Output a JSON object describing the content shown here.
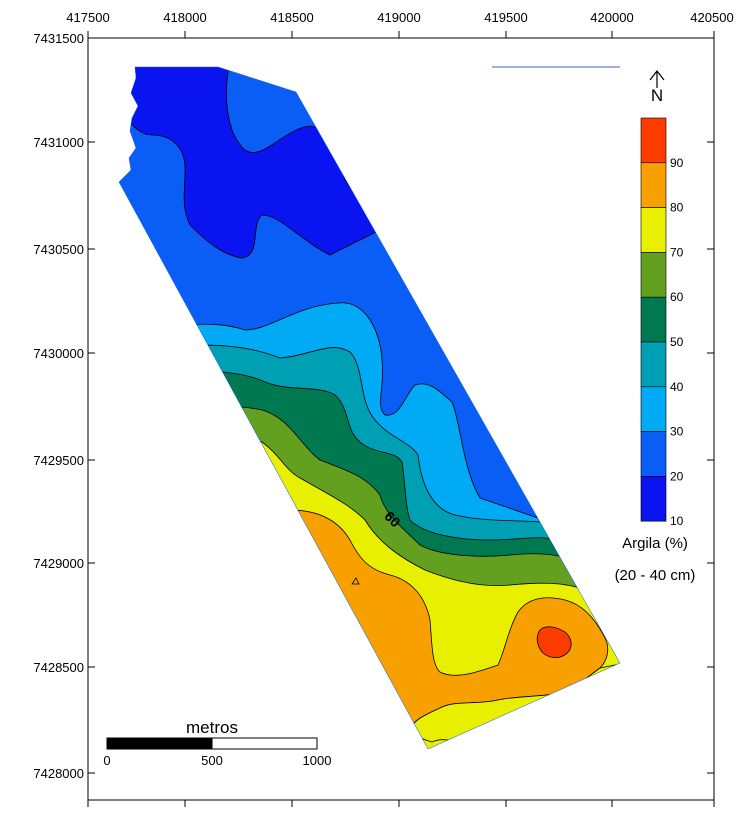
{
  "map": {
    "x_ticks": [
      "417500",
      "418000",
      "418500",
      "419000",
      "419500",
      "420000",
      "420500"
    ],
    "y_ticks": [
      "7431500",
      "7431000",
      "7430500",
      "7430000",
      "7429500",
      "7429000",
      "7428500",
      "7428000"
    ],
    "contour_label": "60",
    "north_label": "N"
  },
  "legend": {
    "title": "Argila (%)",
    "subtitle": "(20 - 40 cm)",
    "levels": [
      "10",
      "20",
      "30",
      "40",
      "50",
      "60",
      "70",
      "80",
      "90"
    ],
    "colors": [
      "#0a14f0",
      "#0a5ef5",
      "#00aaf5",
      "#00a0b4",
      "#007850",
      "#64a020",
      "#e8f000",
      "#f8a000",
      "#ff3c00"
    ]
  },
  "scalebar": {
    "title": "metros",
    "labels": [
      "0",
      "500",
      "1000"
    ]
  },
  "colors": {
    "very_low": "#0a14f0",
    "low": "#0a5ef5",
    "light_blue": "#00aaf5",
    "teal": "#00a0b4",
    "dark_green": "#007850",
    "green": "#64a020",
    "yellow": "#e8f000",
    "orange": "#f8a000",
    "red": "#ff3c00"
  }
}
